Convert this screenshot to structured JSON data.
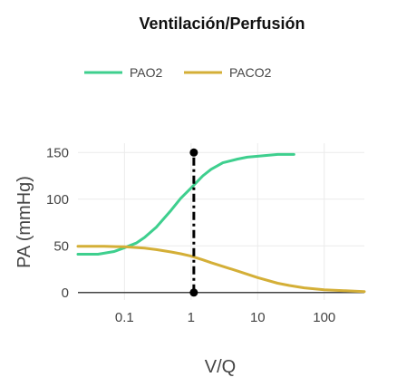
{
  "chart_data": {
    "type": "line",
    "title": "Ventilación/Perfusión",
    "xlabel": "V/Q",
    "ylabel": "PA (mmHg)",
    "x_scale": "log",
    "xlim": [
      0.02,
      400
    ],
    "ylim": [
      -8,
      160
    ],
    "x_ticks": [
      0.1,
      1,
      10,
      100
    ],
    "x_tick_labels": [
      "0.1",
      "1",
      "10",
      "100"
    ],
    "y_ticks": [
      0,
      50,
      100,
      150
    ],
    "y_tick_labels": [
      "0",
      "50",
      "100",
      "150"
    ],
    "grid": true,
    "legend": {
      "placement": "top-left",
      "orientation": "horizontal"
    },
    "series": [
      {
        "name": "PAO2",
        "color": "#3ecf8e",
        "x": [
          0.02,
          0.04,
          0.07,
          0.1,
          0.15,
          0.2,
          0.3,
          0.5,
          0.7,
          1,
          1.5,
          2,
          3,
          5,
          7,
          10,
          20,
          35
        ],
        "y": [
          41,
          41,
          44,
          48,
          53,
          59,
          70,
          88,
          101,
          112,
          125,
          132,
          139,
          143,
          145,
          146,
          148,
          148
        ]
      },
      {
        "name": "PACO2",
        "color": "#d4af37",
        "x": [
          0.02,
          0.05,
          0.1,
          0.2,
          0.3,
          0.5,
          0.7,
          1,
          1.5,
          2,
          3,
          5,
          10,
          20,
          30,
          50,
          100,
          200,
          400
        ],
        "y": [
          49.5,
          49.5,
          49,
          47.5,
          46,
          43.5,
          41.5,
          39,
          35,
          32,
          28,
          23,
          16,
          10,
          7.5,
          5,
          3,
          2,
          1
        ]
      }
    ],
    "annotations": [
      {
        "kind": "vertical-dashdot-line",
        "x": 1.1,
        "y_from": 0,
        "y_to": 150,
        "color": "#000000",
        "endpoint_markers": true
      }
    ]
  }
}
